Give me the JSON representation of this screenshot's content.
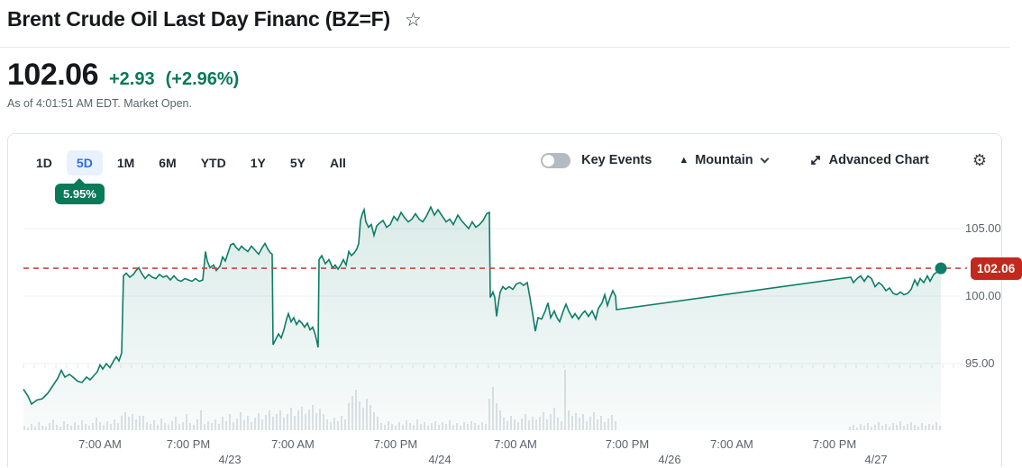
{
  "header": {
    "title": "Brent Crude Oil Last Day Financ (BZ=F)",
    "star_icon": "star-outline",
    "price": "102.06",
    "change": "+2.93",
    "change_pct": "(+2.96%)",
    "as_of": "As of 4:01:51 AM EDT. Market Open."
  },
  "toolbar": {
    "ranges": [
      {
        "label": "1D",
        "selected": false
      },
      {
        "label": "5D",
        "selected": true
      },
      {
        "label": "1M",
        "selected": false
      },
      {
        "label": "6M",
        "selected": false
      },
      {
        "label": "YTD",
        "selected": false
      },
      {
        "label": "1Y",
        "selected": false
      },
      {
        "label": "5Y",
        "selected": false
      },
      {
        "label": "All",
        "selected": false
      }
    ],
    "selected_range_change": "5.95%",
    "key_events_label": "Key Events",
    "key_events_on": false,
    "chart_type_label": "Mountain",
    "advanced_chart_label": "Advanced Chart",
    "settings_icon": "gear"
  },
  "colors": {
    "line_green": "#0f7d68",
    "fill_green": "#0f7d68",
    "accent_green": "#067a57",
    "badge_green": "#087a57",
    "tag_red": "#c2291d",
    "dash_red": "#cb463a",
    "tab_blue": "#2d6fdc",
    "tab_blue_bg": "#e9f1fd",
    "grid_gray": "#eef1f4",
    "volume_gray": "#d6dadd",
    "text_dark": "#232a31",
    "text_gray": "#5b636a"
  },
  "chart_data": {
    "type": "area",
    "symbol": "BZ=F",
    "last_price": 102.06,
    "price_tag": "102.06",
    "ylim": [
      90.1,
      107.1
    ],
    "grid": true,
    "y_ticks": [
      {
        "label": "105.00",
        "value": 105
      },
      {
        "label": "100.00",
        "value": 100
      },
      {
        "label": "95.00",
        "value": 95
      }
    ],
    "x_time_labels": [
      {
        "t": "7:00 AM",
        "x": 110
      },
      {
        "t": "7:00 PM",
        "x": 208
      },
      {
        "t": "7:00 AM",
        "x": 324
      },
      {
        "t": "7:00 PM",
        "x": 438
      },
      {
        "t": "7:00 AM",
        "x": 571
      },
      {
        "t": "7:00 PM",
        "x": 695
      },
      {
        "t": "7:00 AM",
        "x": 811
      },
      {
        "t": "7:00 PM",
        "x": 925
      }
    ],
    "x_date_labels": [
      {
        "t": "4/23",
        "x": 254
      },
      {
        "t": "4/24",
        "x": 487
      },
      {
        "t": "4/26",
        "x": 742
      },
      {
        "t": "4/27",
        "x": 971
      }
    ],
    "series": [
      {
        "name": "BZ=F price",
        "points": [
          [
            25,
            93.1
          ],
          [
            30,
            92.6
          ],
          [
            34,
            92.0
          ],
          [
            40,
            92.3
          ],
          [
            46,
            92.4
          ],
          [
            52,
            92.8
          ],
          [
            58,
            93.4
          ],
          [
            63,
            93.9
          ],
          [
            67,
            94.5
          ],
          [
            71,
            94.0
          ],
          [
            76,
            94.2
          ],
          [
            80,
            94.0
          ],
          [
            85,
            93.7
          ],
          [
            90,
            93.6
          ],
          [
            95,
            94.0
          ],
          [
            99,
            93.8
          ],
          [
            103,
            94.1
          ],
          [
            107,
            94.4
          ],
          [
            110,
            94.9
          ],
          [
            113,
            94.6
          ],
          [
            117,
            95.0
          ],
          [
            121,
            94.7
          ],
          [
            125,
            95.2
          ],
          [
            128,
            95.5
          ],
          [
            131,
            95.2
          ],
          [
            134,
            95.8
          ],
          [
            136,
            101.5
          ],
          [
            139,
            101.7
          ],
          [
            143,
            101.4
          ],
          [
            147,
            101.6
          ],
          [
            150,
            101.9
          ],
          [
            153,
            102.1
          ],
          [
            156,
            101.7
          ],
          [
            160,
            101.3
          ],
          [
            164,
            101.6
          ],
          [
            168,
            101.4
          ],
          [
            172,
            101.3
          ],
          [
            176,
            101.6
          ],
          [
            180,
            101.4
          ],
          [
            184,
            101.5
          ],
          [
            188,
            101.2
          ],
          [
            192,
            101.5
          ],
          [
            196,
            101.2
          ],
          [
            200,
            101.1
          ],
          [
            204,
            101.3
          ],
          [
            208,
            101.2
          ],
          [
            212,
            101.1
          ],
          [
            216,
            101.3
          ],
          [
            220,
            101.1
          ],
          [
            224,
            101.2
          ],
          [
            227,
            103.3
          ],
          [
            229,
            102.6
          ],
          [
            232,
            102.1
          ],
          [
            236,
            102.3
          ],
          [
            239,
            101.9
          ],
          [
            243,
            102.2
          ],
          [
            246,
            102.9
          ],
          [
            249,
            102.6
          ],
          [
            252,
            103.2
          ],
          [
            255,
            103.8
          ],
          [
            258,
            103.9
          ],
          [
            261,
            103.6
          ],
          [
            264,
            103.4
          ],
          [
            267,
            103.7
          ],
          [
            270,
            103.5
          ],
          [
            274,
            103.3
          ],
          [
            278,
            103.7
          ],
          [
            282,
            103.4
          ],
          [
            286,
            103.1
          ],
          [
            290,
            103.6
          ],
          [
            293,
            103.9
          ],
          [
            296,
            103.5
          ],
          [
            299,
            103.2
          ],
          [
            301,
            103.1
          ],
          [
            302,
            96.4
          ],
          [
            305,
            96.8
          ],
          [
            308,
            97.2
          ],
          [
            311,
            96.9
          ],
          [
            314,
            97.5
          ],
          [
            317,
            98.3
          ],
          [
            319,
            98.7
          ],
          [
            322,
            98.1
          ],
          [
            325,
            98.4
          ],
          [
            328,
            97.9
          ],
          [
            331,
            98.2
          ],
          [
            334,
            98.0
          ],
          [
            337,
            97.7
          ],
          [
            340,
            98.0
          ],
          [
            343,
            97.5
          ],
          [
            346,
            97.7
          ],
          [
            349,
            97.1
          ],
          [
            352,
            96.2
          ],
          [
            353,
            102.7
          ],
          [
            356,
            103.0
          ],
          [
            360,
            102.4
          ],
          [
            364,
            102.7
          ],
          [
            368,
            102.1
          ],
          [
            371,
            102.3
          ],
          [
            374,
            102.0
          ],
          [
            377,
            102.3
          ],
          [
            380,
            102.7
          ],
          [
            383,
            102.3
          ],
          [
            386,
            103.3
          ],
          [
            389,
            103.0
          ],
          [
            392,
            103.2
          ],
          [
            395,
            103.5
          ],
          [
            397,
            103.9
          ],
          [
            399,
            105.6
          ],
          [
            401,
            106.1
          ],
          [
            403,
            106.4
          ],
          [
            405,
            105.5
          ],
          [
            408,
            105.1
          ],
          [
            411,
            105.3
          ],
          [
            414,
            104.5
          ],
          [
            417,
            105.2
          ],
          [
            420,
            105.4
          ],
          [
            424,
            105.6
          ],
          [
            428,
            105.1
          ],
          [
            432,
            105.3
          ],
          [
            436,
            105.9
          ],
          [
            440,
            105.6
          ],
          [
            444,
            106.2
          ],
          [
            448,
            105.8
          ],
          [
            452,
            105.5
          ],
          [
            456,
            105.7
          ],
          [
            460,
            106.1
          ],
          [
            464,
            105.7
          ],
          [
            468,
            105.5
          ],
          [
            472,
            105.9
          ],
          [
            477,
            106.6
          ],
          [
            481,
            106.0
          ],
          [
            485,
            106.4
          ],
          [
            490,
            105.9
          ],
          [
            494,
            105.5
          ],
          [
            498,
            105.7
          ],
          [
            502,
            105.3
          ],
          [
            507,
            106.0
          ],
          [
            511,
            105.6
          ],
          [
            515,
            105.3
          ],
          [
            519,
            105.0
          ],
          [
            523,
            105.5
          ],
          [
            527,
            105.1
          ],
          [
            531,
            105.3
          ],
          [
            535,
            105.6
          ],
          [
            539,
            106.1
          ],
          [
            542,
            106.2
          ],
          [
            543,
            99.9
          ],
          [
            546,
            100.3
          ],
          [
            548,
            99.9
          ],
          [
            550,
            98.5
          ],
          [
            552,
            99.5
          ],
          [
            554,
            100.3
          ],
          [
            557,
            100.7
          ],
          [
            560,
            100.5
          ],
          [
            564,
            100.7
          ],
          [
            568,
            100.5
          ],
          [
            572,
            100.9
          ],
          [
            576,
            101.0
          ],
          [
            580,
            100.8
          ],
          [
            584,
            101.0
          ],
          [
            587,
            99.9
          ],
          [
            590,
            98.7
          ],
          [
            593,
            97.4
          ],
          [
            596,
            98.4
          ],
          [
            600,
            98.3
          ],
          [
            604,
            98.9
          ],
          [
            607,
            99.5
          ],
          [
            610,
            98.4
          ],
          [
            614,
            98.9
          ],
          [
            617,
            98.4
          ],
          [
            620,
            98.1
          ],
          [
            624,
            98.9
          ],
          [
            627,
            99.4
          ],
          [
            630,
            98.9
          ],
          [
            634,
            98.4
          ],
          [
            637,
            98.7
          ],
          [
            641,
            98.3
          ],
          [
            645,
            98.7
          ],
          [
            648,
            98.9
          ],
          [
            652,
            98.5
          ],
          [
            656,
            98.9
          ],
          [
            660,
            98.3
          ],
          [
            663,
            99.1
          ],
          [
            667,
            99.5
          ],
          [
            670,
            100.1
          ],
          [
            673,
            99.3
          ],
          [
            676,
            99.9
          ],
          [
            679,
            100.4
          ],
          [
            682,
            100.0
          ],
          [
            683,
            99.0
          ],
          [
            943,
            101.4
          ],
          [
            946,
            101.0
          ],
          [
            950,
            101.3
          ],
          [
            954,
            101.5
          ],
          [
            958,
            101.1
          ],
          [
            962,
            101.5
          ],
          [
            966,
            101.3
          ],
          [
            970,
            100.7
          ],
          [
            974,
            101.0
          ],
          [
            978,
            100.8
          ],
          [
            982,
            100.4
          ],
          [
            986,
            100.6
          ],
          [
            990,
            100.2
          ],
          [
            994,
            100.1
          ],
          [
            998,
            100.3
          ],
          [
            1002,
            100.1
          ],
          [
            1006,
            100.2
          ],
          [
            1010,
            100.5
          ],
          [
            1014,
            101.2
          ],
          [
            1017,
            100.8
          ],
          [
            1020,
            101.3
          ],
          [
            1024,
            101.0
          ],
          [
            1028,
            101.5
          ],
          [
            1031,
            101.1
          ],
          [
            1035,
            101.6
          ],
          [
            1039,
            101.8
          ],
          [
            1043,
            102.06
          ]
        ]
      }
    ],
    "volume_segments": [
      {
        "x0": 26,
        "dx": 4,
        "h": [
          5,
          3,
          7,
          4,
          9,
          5,
          4,
          8,
          12,
          6,
          4,
          10,
          7,
          5,
          9,
          6,
          11,
          7,
          5,
          8,
          14,
          9,
          6,
          10,
          7,
          12,
          8,
          16
        ]
      },
      {
        "x0": 138,
        "dx": 4,
        "h": [
          20,
          15,
          18,
          12,
          16,
          16
        ]
      },
      {
        "x0": 162,
        "dx": 4,
        "h": [
          9,
          7,
          11,
          6,
          13,
          8,
          6,
          10,
          15,
          7,
          9,
          18,
          8,
          6,
          12,
          22,
          7,
          10
        ]
      },
      {
        "x0": 234,
        "dx": 4,
        "h": [
          8,
          12,
          7,
          15,
          10,
          18,
          9,
          13,
          20,
          11,
          16,
          9,
          14,
          19,
          12,
          17,
          22,
          15,
          18
        ]
      },
      {
        "x0": 310,
        "dx": 4,
        "h": [
          22,
          14,
          18,
          25,
          16,
          22,
          26,
          18,
          23,
          28,
          19,
          24,
          18
        ]
      },
      {
        "x0": 362,
        "dx": 4,
        "h": [
          12,
          9,
          14,
          10,
          16,
          12,
          30,
          38,
          45,
          32,
          25,
          35,
          28,
          20,
          15
        ]
      },
      {
        "x0": 422,
        "dx": 4,
        "h": [
          8,
          6,
          10,
          7,
          5,
          9,
          6,
          11,
          8,
          6,
          12,
          7,
          9,
          5,
          8,
          10,
          6,
          9,
          7,
          11,
          6,
          8,
          5,
          9,
          7,
          10,
          8,
          6,
          9,
          7
        ]
      },
      {
        "x0": 542,
        "dx": 4,
        "h": [
          35,
          48,
          30,
          22
        ]
      },
      {
        "x0": 558,
        "dx": 4,
        "h": [
          14,
          10,
          16,
          12,
          9,
          13,
          18,
          11,
          15,
          12
        ]
      },
      {
        "x0": 598,
        "dx": 4,
        "h": [
          15,
          20,
          12,
          18,
          25,
          14,
          10,
          67,
          22,
          16,
          19
        ]
      },
      {
        "x0": 642,
        "dx": 4,
        "h": [
          14,
          18,
          10,
          15,
          20,
          12,
          16,
          9,
          13,
          17,
          10
        ]
      },
      {
        "x0": 942,
        "dx": 4,
        "h": [
          4,
          6,
          3,
          7,
          5,
          8,
          4,
          6,
          9,
          5,
          7,
          4,
          8,
          6,
          10,
          5,
          7,
          9,
          6,
          4,
          8,
          5,
          7,
          6,
          9,
          5
        ]
      }
    ]
  }
}
